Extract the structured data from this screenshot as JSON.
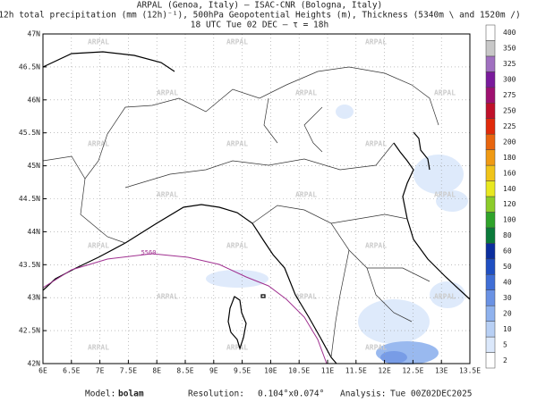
{
  "header": {
    "line1": "ARPAL (Genoa, Italy)  —  ISAC-CNR (Bologna, Italy)",
    "line2": "12h total precipitation (mm (12h)⁻¹), 500hPa Geopotential Heights (m), Thickness (5340m \\ and 1520m /)",
    "line3": "18 UTC Tue 02 DEC  —  τ = 18h"
  },
  "map": {
    "lonlim": [
      6,
      13.5
    ],
    "latlim": [
      42,
      47
    ],
    "lon_ticks": [
      {
        "value": 6,
        "label": "6E"
      },
      {
        "value": 6.5,
        "label": "6.5E"
      },
      {
        "value": 7,
        "label": "7E"
      },
      {
        "value": 7.5,
        "label": "7.5E"
      },
      {
        "value": 8,
        "label": "8E"
      },
      {
        "value": 8.5,
        "label": "8.5E"
      },
      {
        "value": 9,
        "label": "9E"
      },
      {
        "value": 9.5,
        "label": "9.5E"
      },
      {
        "value": 10,
        "label": "10E"
      },
      {
        "value": 10.5,
        "label": "10.5E"
      },
      {
        "value": 11,
        "label": "11E"
      },
      {
        "value": 11.5,
        "label": "11.5E"
      },
      {
        "value": 12,
        "label": "12E"
      },
      {
        "value": 12.5,
        "label": "12.5E"
      },
      {
        "value": 13,
        "label": "13E"
      },
      {
        "value": 13.5,
        "label": "13.5E"
      }
    ],
    "lat_ticks": [
      {
        "value": 42,
        "label": "42N"
      },
      {
        "value": 42.5,
        "label": "42.5N"
      },
      {
        "value": 43,
        "label": "43N"
      },
      {
        "value": 43.5,
        "label": "43.5N"
      },
      {
        "value": 44,
        "label": "44N"
      },
      {
        "value": 44.5,
        "label": "44.5N"
      },
      {
        "value": 45,
        "label": "45N"
      },
      {
        "value": 45.5,
        "label": "45.5N"
      },
      {
        "value": 46,
        "label": "46N"
      },
      {
        "value": 46.5,
        "label": "46.5N"
      },
      {
        "value": 47,
        "label": "47N"
      }
    ],
    "contour_label": "5560",
    "watermark": "ARPAL"
  },
  "colorbar": {
    "levels": [
      2,
      5,
      10,
      20,
      30,
      40,
      50,
      60,
      80,
      100,
      120,
      140,
      160,
      180,
      200,
      225,
      250,
      275,
      300,
      325,
      350,
      400
    ],
    "colors": [
      "#ffffff",
      "#dbe8fb",
      "#b8d0f5",
      "#8fb2ee",
      "#6a92e4",
      "#3f6ed6",
      "#1f4fc2",
      "#0b2e9e",
      "#0a7a3a",
      "#2fa32a",
      "#8ccc2a",
      "#e8e820",
      "#f0c419",
      "#f09a13",
      "#e8650e",
      "#e02a0a",
      "#c0102a",
      "#9e1070",
      "#7a1a9c",
      "#a070c0",
      "#c8c8c8",
      "#ffffff"
    ]
  },
  "footer": {
    "model_label": "Model:",
    "model": "bolam",
    "resolution_label": "Resolution:",
    "resolution": "0.104°x0.074°",
    "analysis_label": "Analysis:",
    "analysis": "Tue 00Z02DEC2025"
  }
}
